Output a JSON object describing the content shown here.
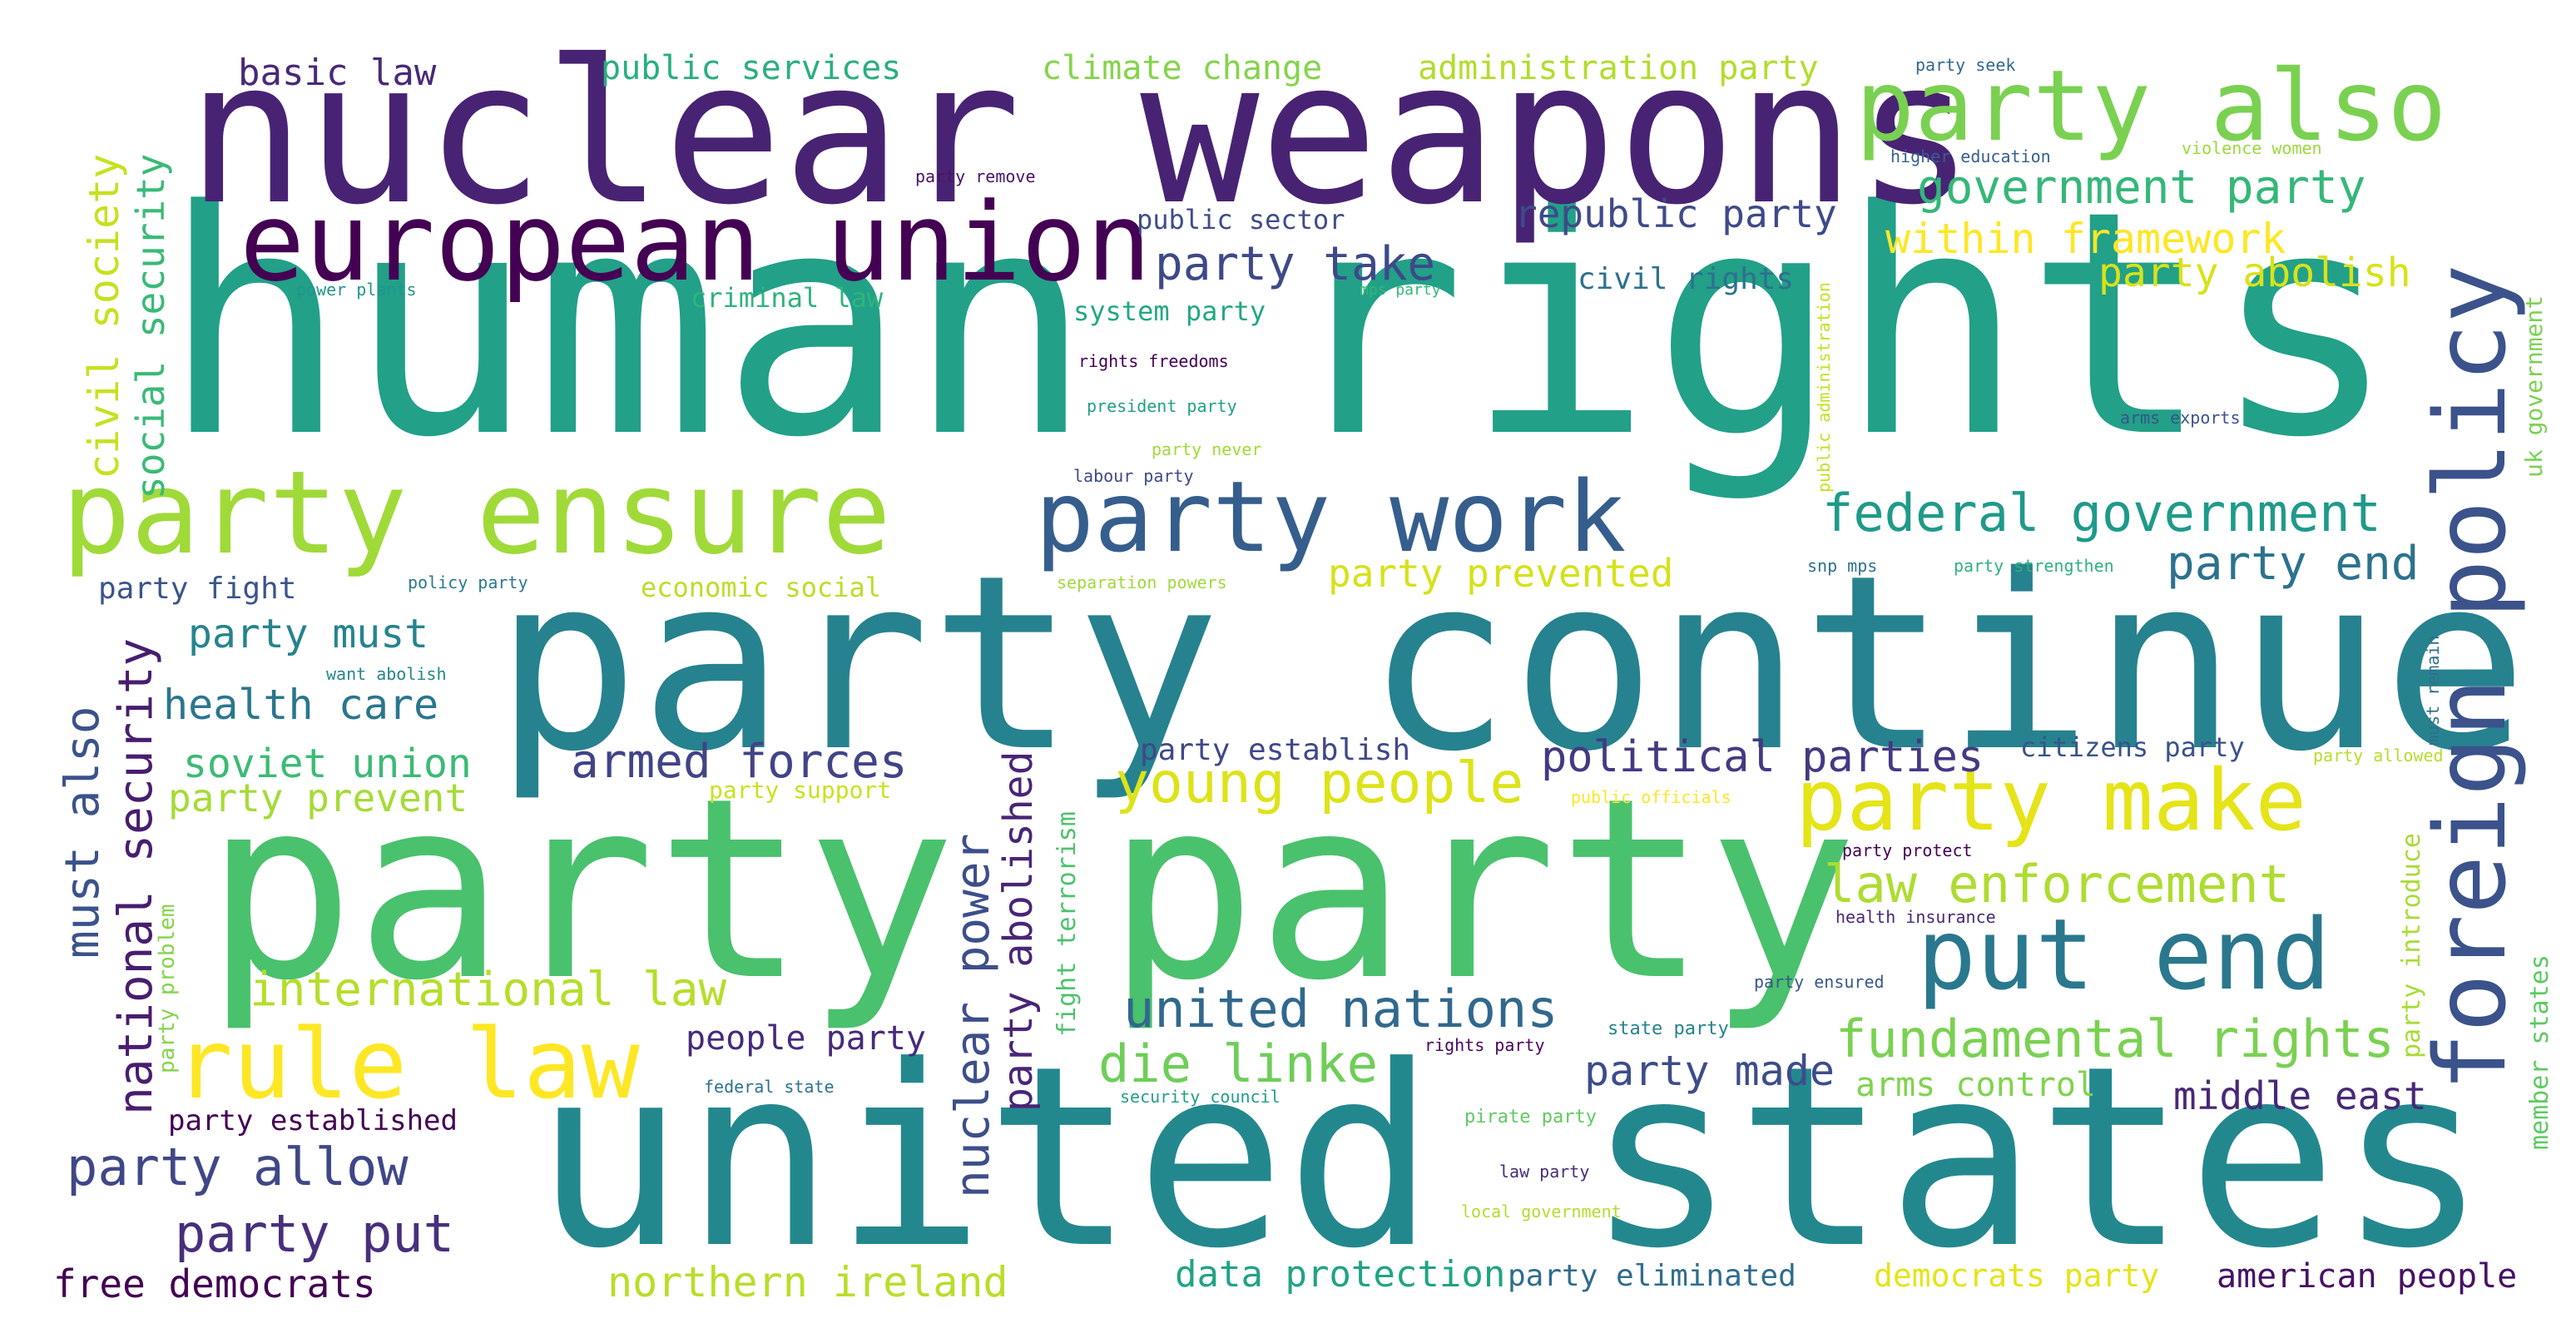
{
  "wordcloud": {
    "words": [
      {
        "text": "human rights",
        "color": "#22a088"
      },
      {
        "text": "party continue",
        "color": "#26828e"
      },
      {
        "text": "united states",
        "color": "#23888e"
      },
      {
        "text": "party party",
        "color": "#4ac16d"
      },
      {
        "text": "nuclear weapons",
        "color": "#482374"
      },
      {
        "text": "european union",
        "color": "#440154"
      },
      {
        "text": "party ensure",
        "color": "#a0da39"
      },
      {
        "text": "party work",
        "color": "#355e8d"
      },
      {
        "text": "party also",
        "color": "#7ad151"
      },
      {
        "text": "foreign policy",
        "color": "#3b528b"
      },
      {
        "text": "rule law",
        "color": "#fde725"
      },
      {
        "text": "put end",
        "color": "#2a788e"
      },
      {
        "text": "party make",
        "color": "#e5e419"
      },
      {
        "text": "young people",
        "color": "#dde318"
      },
      {
        "text": "federal government",
        "color": "#1f9a8a"
      },
      {
        "text": "government party",
        "color": "#35b779"
      },
      {
        "text": "law enforcement",
        "color": "#addc30"
      },
      {
        "text": "united nations",
        "color": "#31688e"
      },
      {
        "text": "fundamental rights",
        "color": "#7ad151"
      },
      {
        "text": "die linke",
        "color": "#6ece58"
      },
      {
        "text": "international law",
        "color": "#b5de2b"
      },
      {
        "text": "armed forces",
        "color": "#414487"
      },
      {
        "text": "political parties",
        "color": "#443983"
      },
      {
        "text": "party end",
        "color": "#2c728e"
      },
      {
        "text": "party take",
        "color": "#3e4989"
      },
      {
        "text": "within framework",
        "color": "#fde725"
      },
      {
        "text": "republic party",
        "color": "#3e4a89"
      },
      {
        "text": "party abolish",
        "color": "#d8e219"
      },
      {
        "text": "party prevented",
        "color": "#d5e21a"
      },
      {
        "text": "civil society",
        "color": "#c8e020"
      },
      {
        "text": "social security",
        "color": "#3aba76"
      },
      {
        "text": "must also",
        "color": "#3b528b"
      },
      {
        "text": "national security",
        "color": "#481d6f"
      },
      {
        "text": "nuclear power",
        "color": "#3d4e8a"
      },
      {
        "text": "party abolished",
        "color": "#482576"
      },
      {
        "text": "party must",
        "color": "#25848e"
      },
      {
        "text": "health care",
        "color": "#2a768e"
      },
      {
        "text": "soviet union",
        "color": "#3bbb75"
      },
      {
        "text": "party prevent",
        "color": "#a5db36"
      },
      {
        "text": "party allow",
        "color": "#3f4788"
      },
      {
        "text": "party put",
        "color": "#472f7d"
      },
      {
        "text": "free democrats",
        "color": "#440154"
      },
      {
        "text": "northern ireland",
        "color": "#b8de29"
      },
      {
        "text": "data protection",
        "color": "#20a386"
      },
      {
        "text": "party eliminated",
        "color": "#2f6c8e"
      },
      {
        "text": "democrats party",
        "color": "#e5e419"
      },
      {
        "text": "american people",
        "color": "#471164"
      },
      {
        "text": "middle east",
        "color": "#482878"
      },
      {
        "text": "arms control",
        "color": "#7fd34e"
      },
      {
        "text": "party made",
        "color": "#3d4d8a"
      },
      {
        "text": "people party",
        "color": "#472a7a"
      },
      {
        "text": "party established",
        "color": "#440154"
      },
      {
        "text": "basic law",
        "color": "#482979"
      },
      {
        "text": "public services",
        "color": "#29af7f"
      },
      {
        "text": "climate change",
        "color": "#84d44b"
      },
      {
        "text": "administration party",
        "color": "#b2dd2d"
      },
      {
        "text": "public sector",
        "color": "#3e4c8a"
      },
      {
        "text": "civil rights",
        "color": "#2d718e"
      },
      {
        "text": "criminal law",
        "color": "#2fb47c"
      },
      {
        "text": "system party",
        "color": "#22a785"
      },
      {
        "text": "party fight",
        "color": "#3a548c"
      },
      {
        "text": "economic social",
        "color": "#bade28"
      },
      {
        "text": "party establish",
        "color": "#3f4889"
      },
      {
        "text": "citizens party",
        "color": "#3b528b"
      },
      {
        "text": "party support",
        "color": "#cae11f"
      },
      {
        "text": "fight terrorism",
        "color": "#4cc26c"
      },
      {
        "text": "member states",
        "color": "#5ec962"
      },
      {
        "text": "party introduce",
        "color": "#a8db34"
      },
      {
        "text": "uk government",
        "color": "#7ad151"
      },
      {
        "text": "public administration",
        "color": "#c5e021"
      },
      {
        "text": "party problem",
        "color": "#84d44b"
      },
      {
        "text": "must remain",
        "color": "#2e6f8e"
      },
      {
        "text": "party seek",
        "color": "#31688e"
      },
      {
        "text": "higher education",
        "color": "#355f8d"
      },
      {
        "text": "violence women",
        "color": "#9bd93c"
      },
      {
        "text": "party remove",
        "color": "#481467"
      },
      {
        "text": "power plants",
        "color": "#1f968b"
      },
      {
        "text": "mps party",
        "color": "#35b779"
      },
      {
        "text": "rights freedoms",
        "color": "#440154"
      },
      {
        "text": "president party",
        "color": "#1fa088"
      },
      {
        "text": "party never",
        "color": "#a2da37"
      },
      {
        "text": "labour party",
        "color": "#3e4989"
      },
      {
        "text": "arms exports",
        "color": "#3b528b"
      },
      {
        "text": "policy party",
        "color": "#2a788e"
      },
      {
        "text": "separation powers",
        "color": "#9fda3a"
      },
      {
        "text": "snp mps",
        "color": "#2c728e"
      },
      {
        "text": "party strengthen",
        "color": "#2db27d"
      },
      {
        "text": "want abolish",
        "color": "#24868e"
      },
      {
        "text": "public officials",
        "color": "#fde725"
      },
      {
        "text": "party allowed",
        "color": "#b5de2b"
      },
      {
        "text": "party protect",
        "color": "#440154"
      },
      {
        "text": "health insurance",
        "color": "#482878"
      },
      {
        "text": "party ensured",
        "color": "#38588c"
      },
      {
        "text": "state party",
        "color": "#26828e"
      },
      {
        "text": "rights party",
        "color": "#46085c"
      },
      {
        "text": "federal state",
        "color": "#2c728e"
      },
      {
        "text": "security council",
        "color": "#1f9e89"
      },
      {
        "text": "pirate party",
        "color": "#60ca60"
      },
      {
        "text": "law party",
        "color": "#472d7b"
      },
      {
        "text": "local government",
        "color": "#b2dd2d"
      }
    ]
  }
}
